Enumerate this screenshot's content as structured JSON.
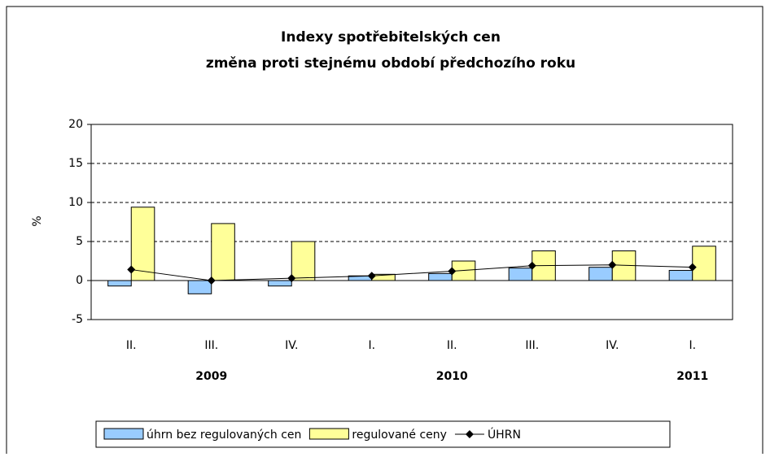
{
  "chart_data": {
    "type": "bar-line",
    "title": [
      "Indexy spotřebitelských cen",
      "změna proti stejnému období předchozího roku"
    ],
    "y_label": "%",
    "categories": [
      "II.",
      "III.",
      "IV.",
      "I.",
      "II.",
      "III.",
      "IV.",
      "I."
    ],
    "year_labels": [
      null,
      "2009",
      null,
      null,
      "2010",
      null,
      null,
      "2011"
    ],
    "series": [
      {
        "name": "úhrn bez regulovaných cen",
        "type": "bar",
        "color": "#99ccff",
        "values": [
          -0.7,
          -1.7,
          -0.7,
          0.6,
          0.9,
          1.6,
          1.7,
          1.3
        ]
      },
      {
        "name": "regulované ceny",
        "type": "bar",
        "color": "#ffff99",
        "values": [
          9.4,
          7.3,
          5.0,
          0.8,
          2.5,
          3.8,
          3.8,
          4.4
        ]
      },
      {
        "name": "ÚHRN",
        "type": "line",
        "color": "#000000",
        "values": [
          1.4,
          0.0,
          0.3,
          0.6,
          1.2,
          1.9,
          2.0,
          1.7
        ]
      }
    ],
    "ylim": [
      -5,
      20
    ],
    "yticks": [
      -5,
      0,
      5,
      10,
      15,
      20
    ],
    "grid": true
  }
}
